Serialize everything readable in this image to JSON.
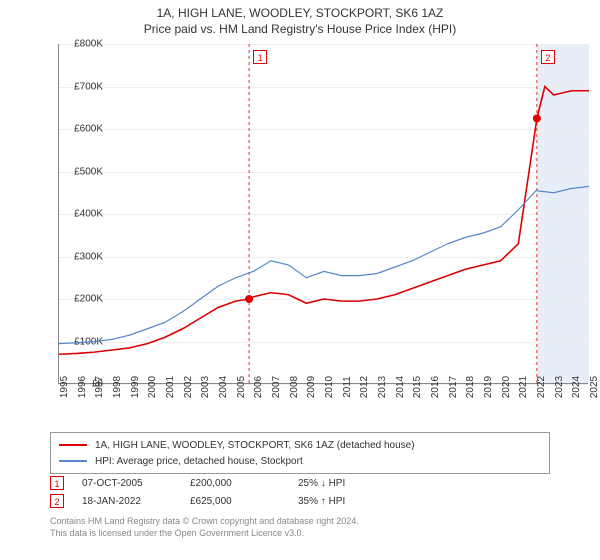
{
  "titles": {
    "line1": "1A, HIGH LANE, WOODLEY, STOCKPORT, SK6 1AZ",
    "line2": "Price paid vs. HM Land Registry's House Price Index (HPI)"
  },
  "chart": {
    "type": "line",
    "y_axis": {
      "min": 0,
      "max": 800000,
      "step": 100000,
      "tick_labels": [
        "£0",
        "£100K",
        "£200K",
        "£300K",
        "£400K",
        "£500K",
        "£600K",
        "£700K",
        "£800K"
      ]
    },
    "x_axis": {
      "min": 1995,
      "max": 2025,
      "step": 1,
      "tick_labels": [
        "1995",
        "1996",
        "1997",
        "1998",
        "1999",
        "2000",
        "2001",
        "2002",
        "2003",
        "2004",
        "2005",
        "2006",
        "2007",
        "2008",
        "2009",
        "2010",
        "2011",
        "2012",
        "2013",
        "2014",
        "2015",
        "2016",
        "2017",
        "2018",
        "2019",
        "2020",
        "2021",
        "2022",
        "2023",
        "2024",
        "2025"
      ]
    },
    "background_color": "#ffffff",
    "grid_color": "#eeeeee",
    "series": [
      {
        "id": "property",
        "color": "#dd0000",
        "width": 1.6,
        "data": [
          [
            1995,
            70000
          ],
          [
            1996,
            72000
          ],
          [
            1997,
            75000
          ],
          [
            1998,
            80000
          ],
          [
            1999,
            85000
          ],
          [
            2000,
            95000
          ],
          [
            2001,
            110000
          ],
          [
            2002,
            130000
          ],
          [
            2003,
            155000
          ],
          [
            2004,
            180000
          ],
          [
            2005,
            195000
          ],
          [
            2005.76,
            200000
          ],
          [
            2006,
            205000
          ],
          [
            2007,
            215000
          ],
          [
            2008,
            210000
          ],
          [
            2009,
            190000
          ],
          [
            2010,
            200000
          ],
          [
            2011,
            195000
          ],
          [
            2012,
            195000
          ],
          [
            2013,
            200000
          ],
          [
            2014,
            210000
          ],
          [
            2015,
            225000
          ],
          [
            2016,
            240000
          ],
          [
            2017,
            255000
          ],
          [
            2018,
            270000
          ],
          [
            2019,
            280000
          ],
          [
            2020,
            290000
          ],
          [
            2021,
            330000
          ],
          [
            2022.05,
            625000
          ],
          [
            2022.5,
            700000
          ],
          [
            2023,
            680000
          ],
          [
            2024,
            690000
          ],
          [
            2025,
            690000
          ]
        ]
      },
      {
        "id": "hpi",
        "color": "#5588cc",
        "width": 1.2,
        "data": [
          [
            1995,
            95000
          ],
          [
            1996,
            97000
          ],
          [
            1997,
            100000
          ],
          [
            1998,
            105000
          ],
          [
            1999,
            115000
          ],
          [
            2000,
            130000
          ],
          [
            2001,
            145000
          ],
          [
            2002,
            170000
          ],
          [
            2003,
            200000
          ],
          [
            2004,
            230000
          ],
          [
            2005,
            250000
          ],
          [
            2006,
            265000
          ],
          [
            2007,
            290000
          ],
          [
            2008,
            280000
          ],
          [
            2009,
            250000
          ],
          [
            2010,
            265000
          ],
          [
            2011,
            255000
          ],
          [
            2012,
            255000
          ],
          [
            2013,
            260000
          ],
          [
            2014,
            275000
          ],
          [
            2015,
            290000
          ],
          [
            2016,
            310000
          ],
          [
            2017,
            330000
          ],
          [
            2018,
            345000
          ],
          [
            2019,
            355000
          ],
          [
            2020,
            370000
          ],
          [
            2021,
            410000
          ],
          [
            2022,
            455000
          ],
          [
            2023,
            450000
          ],
          [
            2024,
            460000
          ],
          [
            2025,
            465000
          ]
        ]
      }
    ],
    "event_markers": [
      {
        "n": "1",
        "x": 2005.76,
        "y": 200000,
        "color": "#dd0000"
      },
      {
        "n": "2",
        "x": 2022.05,
        "y": 625000,
        "color": "#dd0000"
      }
    ],
    "shaded_band": {
      "from": 2022.05,
      "to": 2025,
      "color": "#e8eef7"
    }
  },
  "legend": {
    "rows": [
      {
        "color": "#dd0000",
        "label": "1A, HIGH LANE, WOODLEY, STOCKPORT, SK6 1AZ (detached house)"
      },
      {
        "color": "#5588cc",
        "label": "HPI: Average price, detached house, Stockport"
      }
    ]
  },
  "events": [
    {
      "n": "1",
      "color": "#dd0000",
      "date": "07-OCT-2005",
      "price": "£200,000",
      "delta": "25% ↓ HPI"
    },
    {
      "n": "2",
      "color": "#dd0000",
      "date": "18-JAN-2022",
      "price": "£625,000",
      "delta": "35% ↑ HPI"
    }
  ],
  "footer": {
    "line1": "Contains HM Land Registry data © Crown copyright and database right 2024.",
    "line2": "This data is licensed under the Open Government Licence v3.0."
  }
}
